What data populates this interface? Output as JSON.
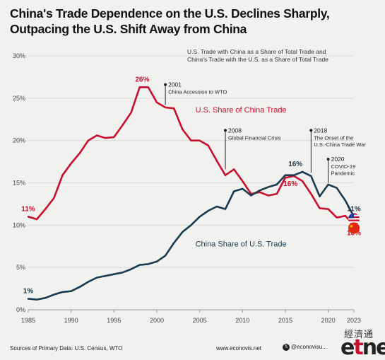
{
  "title_lines": [
    "China's Trade Dependence on the U.S. Declines Sharply,",
    "Outpacing the U.S. Shift Away from China"
  ],
  "subtitle_lines": [
    "U.S. Trade with China as a Share of Total Trade and",
    "China's Trade with the U.S. as a Share of Total Trade"
  ],
  "footer": {
    "source": "Sources of Primary Data: U.S. Census, WTO",
    "website": "www.econovis.net",
    "handle": "@econovisu..."
  },
  "watermark": {
    "cn": "經濟通",
    "et1": "e",
    "et2": "t",
    "et3": "net"
  },
  "colors": {
    "us_share_of_china": "#c8102e",
    "china_share_of_us": "#1a3a4e",
    "background": "#f1f1ef",
    "grid": "#d8d8d6"
  },
  "icons": {
    "us_endpoint": "us-flag-icon",
    "china_endpoint": "china-flag-icon"
  },
  "chart_data": {
    "type": "line",
    "ylim": [
      0,
      30
    ],
    "xlim": [
      1985,
      2023
    ],
    "y_ticks": [
      0,
      5,
      10,
      15,
      20,
      25,
      30
    ],
    "y_tick_labels": [
      "0%",
      "5%",
      "10%",
      "15%",
      "20%",
      "25%",
      "30%"
    ],
    "x_ticks": [
      1985,
      1990,
      1995,
      2000,
      2005,
      2010,
      2015,
      2020,
      2023
    ],
    "x_tick_labels": [
      "1985",
      "1990",
      "1995",
      "2000",
      "2005",
      "2010",
      "2015",
      "2020",
      "2023"
    ],
    "grid": true,
    "x": [
      1985,
      1986,
      1987,
      1988,
      1989,
      1990,
      1991,
      1992,
      1993,
      1994,
      1995,
      1996,
      1997,
      1998,
      1999,
      2000,
      2001,
      2002,
      2003,
      2004,
      2005,
      2006,
      2007,
      2008,
      2009,
      2010,
      2011,
      2012,
      2013,
      2014,
      2015,
      2016,
      2017,
      2018,
      2019,
      2020,
      2021,
      2022,
      2023
    ],
    "series": [
      {
        "name": "U.S. Share of China Trade",
        "values": [
          11.0,
          10.7,
          11.9,
          13.2,
          15.9,
          17.3,
          18.5,
          20.0,
          20.6,
          20.3,
          20.4,
          21.8,
          23.3,
          26.3,
          26.3,
          24.5,
          23.9,
          23.8,
          21.3,
          20.0,
          20.0,
          19.4,
          17.6,
          15.9,
          16.6,
          15.2,
          13.7,
          13.9,
          13.5,
          13.7,
          15.6,
          15.8,
          15.2,
          13.7,
          12.0,
          11.9,
          10.9,
          11.1,
          10.0
        ]
      },
      {
        "name": "China Share of U.S. Trade",
        "values": [
          1.3,
          1.2,
          1.4,
          1.8,
          2.1,
          2.2,
          2.7,
          3.3,
          3.8,
          4.0,
          4.2,
          4.4,
          4.8,
          5.3,
          5.4,
          5.7,
          6.4,
          7.9,
          9.2,
          10.0,
          11.0,
          11.7,
          12.2,
          11.9,
          14.0,
          14.3,
          13.5,
          14.1,
          14.5,
          14.8,
          15.9,
          15.9,
          16.3,
          15.8,
          13.4,
          14.8,
          14.4,
          12.9,
          11.0
        ]
      }
    ],
    "data_labels": [
      {
        "text": "26%",
        "x": 1998.3,
        "y": 26.3,
        "series": 0,
        "pos": "above"
      },
      {
        "text": "11%",
        "x": 1985,
        "y": 11.0,
        "series": 0,
        "pos": "above"
      },
      {
        "text": "16%",
        "x": 2015.6,
        "y": 15.8,
        "series": 0,
        "pos": "below"
      },
      {
        "text": "10%",
        "x": 2023,
        "y": 10.0,
        "series": 0,
        "pos": "below"
      },
      {
        "text": "1%",
        "x": 1985,
        "y": 1.3,
        "series": 1,
        "pos": "above"
      },
      {
        "text": "16%",
        "x": 2017,
        "y": 16.3,
        "series": 1,
        "pos": "above-left"
      },
      {
        "text": "11%",
        "x": 2023,
        "y": 11.0,
        "series": 1,
        "pos": "above"
      }
    ],
    "series_labels": [
      {
        "text": "U.S. Share of China Trade",
        "x": 2004.5,
        "y": 23.3,
        "series": 0
      },
      {
        "text": "China Share of U.S. Trade",
        "x": 2004.5,
        "y": 7.5,
        "series": 1
      }
    ],
    "annotations": [
      {
        "year_text": "2001",
        "text": [
          "China Accession to WTO"
        ],
        "x": 2001,
        "y_top": 26.6,
        "y_bottom": 24.2
      },
      {
        "year_text": "2008",
        "text": [
          "Global Financial Crisis"
        ],
        "x": 2008,
        "y_top": 21.2,
        "y_bottom": 16.6
      },
      {
        "year_text": "2018",
        "text": [
          "The Onset of the",
          "U.S.-China Trade War"
        ],
        "x": 2018,
        "y_top": 21.2,
        "y_bottom": 16.2
      },
      {
        "year_text": "2020",
        "text": [
          "COVID-19",
          "Pandemic"
        ],
        "x": 2020,
        "y_top": 17.8,
        "y_bottom": 15.0
      }
    ]
  }
}
